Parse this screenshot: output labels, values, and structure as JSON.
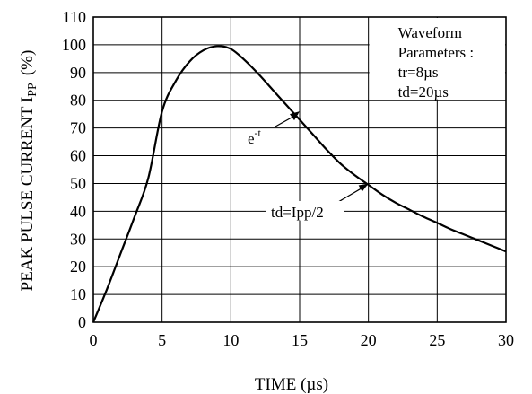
{
  "chart_data": {
    "type": "line",
    "ylabel_main": "PEAK PULSE CURRENT I",
    "ylabel_sub": "PP",
    "ylabel_unit": "(%)",
    "xlabel": "TIME  (µs)",
    "xlim": [
      0,
      30
    ],
    "ylim": [
      0,
      110
    ],
    "xticks": [
      0,
      5,
      10,
      15,
      20,
      25,
      30
    ],
    "yticks": [
      0,
      10,
      20,
      30,
      40,
      50,
      60,
      70,
      80,
      90,
      100,
      110
    ],
    "grid": true,
    "series": [
      {
        "x": [
          0,
          1,
          2,
          3,
          4,
          5,
          6,
          7,
          8,
          9,
          10,
          11,
          12,
          13,
          14,
          15,
          16,
          17,
          18,
          19,
          20,
          21,
          22,
          23,
          24,
          25,
          26,
          27,
          28,
          29,
          30
        ],
        "y": [
          0,
          12,
          25,
          38,
          52,
          76,
          87,
          94,
          98,
          99.5,
          98.5,
          94.5,
          89.5,
          84,
          78.5,
          73,
          67.5,
          62,
          57,
          53,
          49.5,
          46,
          43,
          40.5,
          38,
          35.8,
          33.5,
          31.5,
          29.5,
          27.5,
          25.5
        ]
      }
    ],
    "legend_box": {
      "lines": [
        "Waveform",
        "Parameters :",
        "tr=8µs",
        "td=20µs"
      ]
    },
    "annotations": [
      {
        "label": "e",
        "superscript": "-t",
        "at": [
          15,
          76
        ]
      },
      {
        "label": "td=Ipp/2",
        "at": [
          20,
          50
        ]
      }
    ]
  }
}
